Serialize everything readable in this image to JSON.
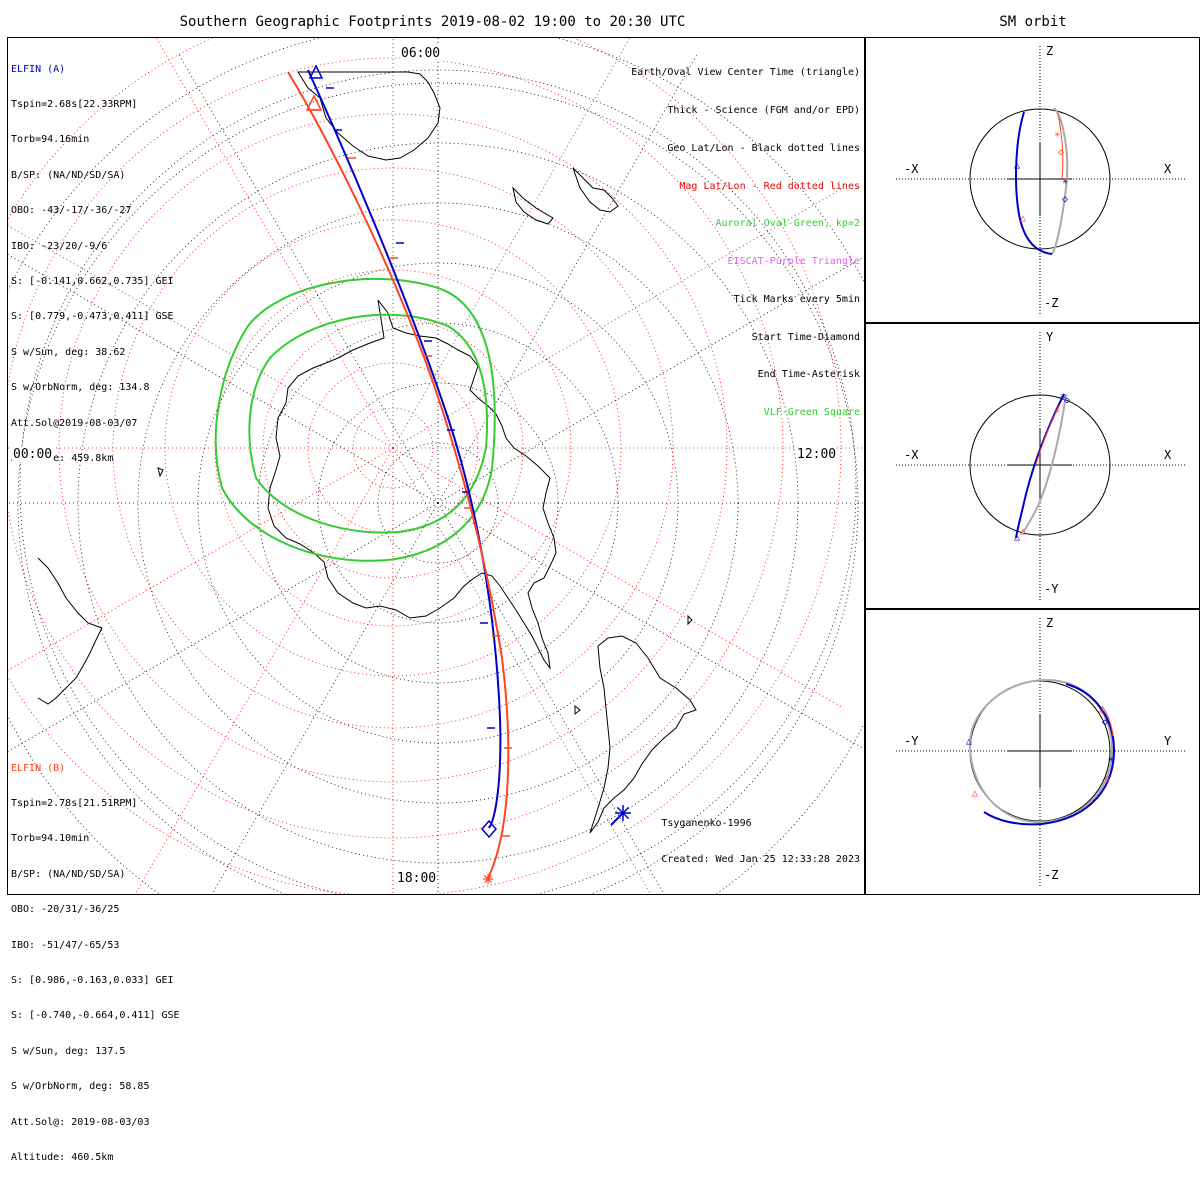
{
  "header": {
    "main_title": "Southern Geographic Footprints 2019-08-02 19:00 to 20:30 UTC",
    "sm_title": "SM orbit"
  },
  "colors": {
    "elfin_a": "#0000cc",
    "elfin_b": "#ff4422",
    "geo_grid": "#000000",
    "mag_grid": "#ee0000",
    "auroral_oval": "#33cc33",
    "eiscat": "#dd66ee",
    "vlf": "#33cc33",
    "orbit_back": "#aaaaaa"
  },
  "elfin_a": {
    "name": "ELFIN (A)",
    "lines": [
      "Tspin=2.68s[22.33RPM]",
      "Torb=94.16min",
      "B/SP: (NA/ND/SD/SA)",
      "OBO: -43/-17/-36/-27",
      "IBO: -23/20/-9/6",
      "S: [-0.141,0.662,0.735] GEI",
      "S: [0.779,-0.473,0.411] GSE",
      "S w/Sun, deg: 38.62",
      "S w/OrbNorm, deg: 134.8",
      "Att.Sol@2019-08-03/07",
      "Altitude: 459.8km"
    ]
  },
  "elfin_b": {
    "name": "ELFIN (B)",
    "lines": [
      "Tspin=2.78s[21.51RPM]",
      "Torb=94.10min",
      "B/SP: (NA/ND/SD/SA)",
      "OBO: -20/31/-36/25",
      "IBO: -51/47/-65/53",
      "S: [0.986,-0.163,0.033] GEI",
      "S: [-0.740,-0.664,0.411] GSE",
      "S w/Sun, deg: 137.5",
      "S w/OrbNorm, deg: 58.85",
      "Att.Sol@: 2019-08-03/03",
      "Altitude: 460.5km"
    ]
  },
  "legend": [
    {
      "text": "Earth/Oval View Center Time (triangle)",
      "color": "#000000"
    },
    {
      "text": "Thick - Science (FGM and/or EPD)",
      "color": "#000000"
    },
    {
      "text": "Geo Lat/Lon - Black dotted lines",
      "color": "#000000"
    },
    {
      "text": "Mag Lat/Lon - Red dotted lines",
      "color": "#ee0000"
    },
    {
      "text": "Auroral Oval-Green, kp=2",
      "color": "#33cc33"
    },
    {
      "text": "EISCAT-Purple Triangle",
      "color": "#dd66ee"
    },
    {
      "text": "Tick Marks every 5min",
      "color": "#000000"
    },
    {
      "text": "Start Time-Diamond",
      "color": "#000000"
    },
    {
      "text": "End Time-Asterisk",
      "color": "#000000"
    },
    {
      "text": "VLF-Green Square",
      "color": "#33cc33"
    }
  ],
  "mlt_labels": {
    "top": "06:00",
    "left": "00:00",
    "right": "12:00",
    "bottom": "18:00"
  },
  "credit": {
    "model": "Tsyganenko-1996",
    "created": "Created: Wed Jan 25 12:33:28 2023"
  },
  "sm_panels": [
    {
      "id": "xz",
      "top": "Z",
      "bottom": "-Z",
      "left": "-X",
      "right": "X"
    },
    {
      "id": "xy",
      "top": "Y",
      "bottom": "-Y",
      "left": "-X",
      "right": "X"
    },
    {
      "id": "yz",
      "top": "Z",
      "bottom": "-Z",
      "left": "-Y",
      "right": "Y"
    }
  ]
}
